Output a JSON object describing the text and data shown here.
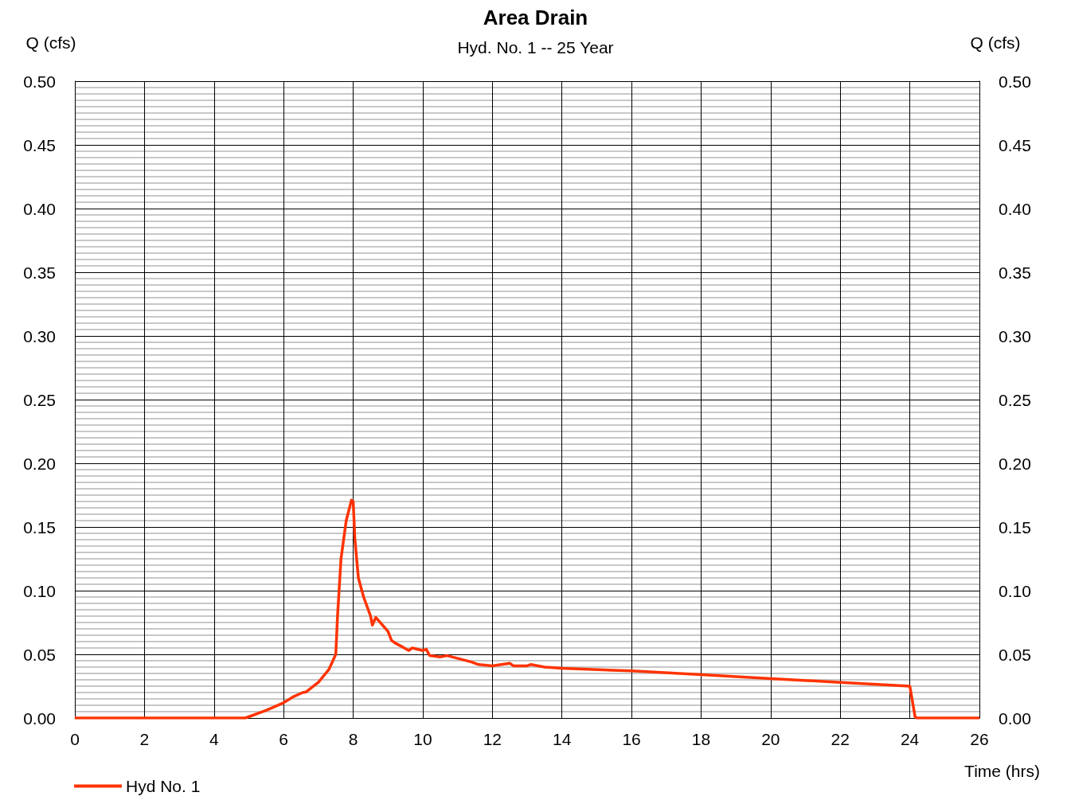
{
  "chart_data": {
    "type": "line",
    "title": "Area Drain",
    "subtitle": "Hyd. No. 1 -- 25 Year",
    "xlabel": "Time (hrs)",
    "ylabel": "Q (cfs)",
    "y2label": "Q (cfs)",
    "series": [
      {
        "name": "Hyd No. 1",
        "color": "#ff3300",
        "x": [
          0,
          2,
          4,
          4.9,
          5.5,
          6.0,
          6.3,
          6.55,
          6.65,
          7.0,
          7.3,
          7.5,
          7.55,
          7.65,
          7.8,
          7.95,
          8.0,
          8.05,
          8.15,
          8.3,
          8.5,
          8.55,
          8.65,
          9.0,
          9.1,
          9.2,
          9.6,
          9.7,
          10.0,
          10.1,
          10.2,
          10.5,
          10.7,
          11.4,
          11.6,
          12.0,
          12.5,
          12.6,
          13.0,
          13.1,
          13.5,
          14.0,
          16,
          18,
          20,
          22,
          24,
          24.15,
          24.2,
          26
        ],
        "values": [
          0,
          0,
          0,
          0,
          0.006,
          0.012,
          0.017,
          0.02,
          0.0205,
          0.028,
          0.038,
          0.05,
          0.08,
          0.125,
          0.155,
          0.171,
          0.17,
          0.14,
          0.11,
          0.095,
          0.08,
          0.073,
          0.079,
          0.068,
          0.061,
          0.059,
          0.053,
          0.055,
          0.053,
          0.054,
          0.049,
          0.048,
          0.049,
          0.044,
          0.042,
          0.041,
          0.043,
          0.041,
          0.041,
          0.042,
          0.04,
          0.039,
          0.037,
          0.034,
          0.031,
          0.028,
          0.025,
          0.001,
          0,
          0
        ]
      }
    ],
    "xlim": [
      0,
      26
    ],
    "xticks": [
      0,
      2,
      4,
      6,
      8,
      10,
      12,
      14,
      16,
      18,
      20,
      22,
      24,
      26
    ],
    "ylim": [
      0,
      0.5
    ],
    "yticks": [
      {
        "value": 0,
        "label": "0.00"
      },
      {
        "value": 0.05,
        "label": "0.05"
      },
      {
        "value": 0.1,
        "label": "0.10"
      },
      {
        "value": 0.15,
        "label": "0.15"
      },
      {
        "value": 0.2,
        "label": "0.20"
      },
      {
        "value": 0.25,
        "label": "0.25"
      },
      {
        "value": 0.3,
        "label": "0.30"
      },
      {
        "value": 0.35,
        "label": "0.35"
      },
      {
        "value": 0.4,
        "label": "0.40"
      },
      {
        "value": 0.45,
        "label": "0.45"
      },
      {
        "value": 0.5,
        "label": "0.50"
      }
    ],
    "y2lim": [
      0,
      0.5
    ],
    "y2ticks": [
      {
        "value": 0,
        "label": "0.00"
      },
      {
        "value": 0.05,
        "label": "0.05"
      },
      {
        "value": 0.1,
        "label": "0.10"
      },
      {
        "value": 0.15,
        "label": "0.15"
      },
      {
        "value": 0.2,
        "label": "0.20"
      },
      {
        "value": 0.25,
        "label": "0.25"
      },
      {
        "value": 0.3,
        "label": "0.30"
      },
      {
        "value": 0.35,
        "label": "0.35"
      },
      {
        "value": 0.4,
        "label": "0.40"
      },
      {
        "value": 0.45,
        "label": "0.45"
      },
      {
        "value": 0.5,
        "label": "0.50"
      }
    ],
    "grid": true,
    "legend": "bottom left",
    "marker": "none",
    "line_style": "solid"
  }
}
